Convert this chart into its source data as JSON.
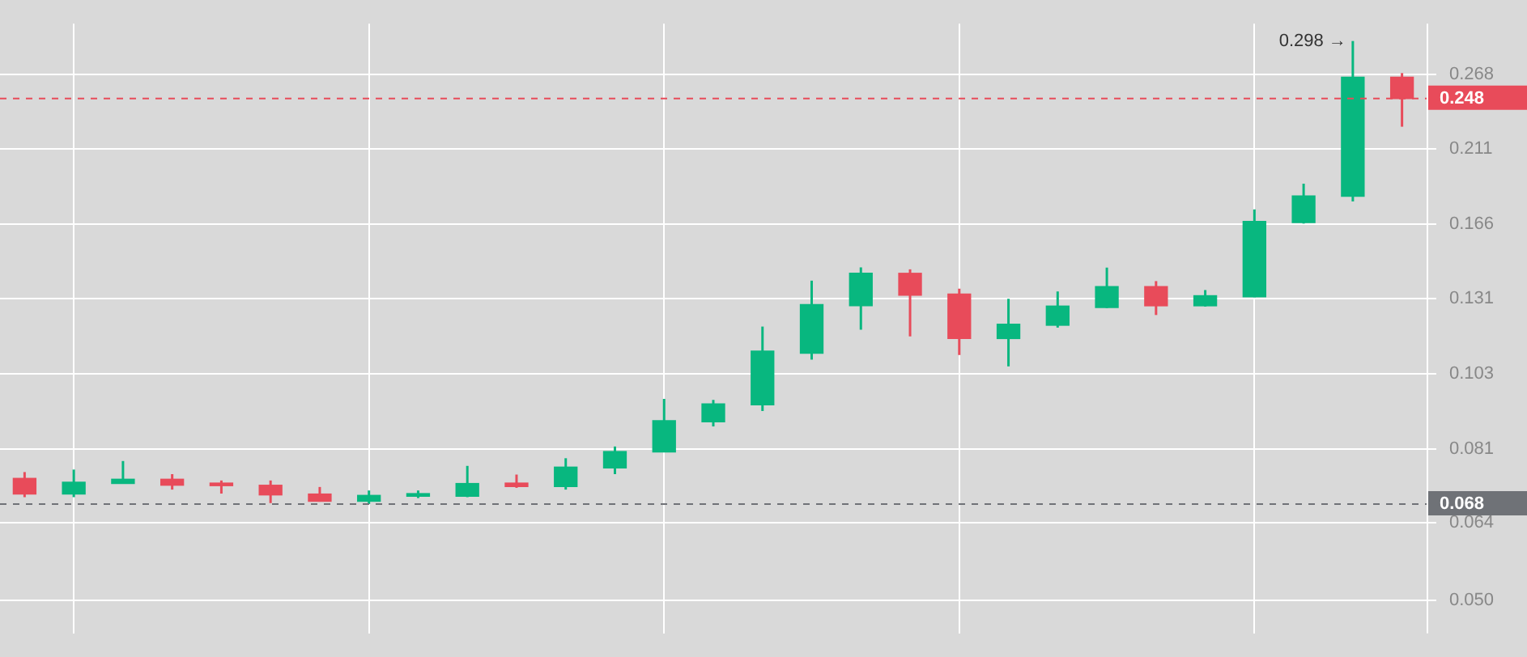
{
  "chart_data": {
    "type": "candlestick",
    "categories": [
      null,
      null,
      null,
      null,
      null,
      null,
      null,
      null,
      null,
      null,
      null,
      null,
      null,
      null,
      null,
      null,
      null,
      null,
      null,
      null,
      null,
      null,
      null,
      null,
      null,
      null,
      null,
      null,
      null
    ],
    "ohlc": [
      [
        0.0738,
        0.0753,
        0.0695,
        0.0702
      ],
      [
        0.0702,
        0.0759,
        0.0695,
        0.0729
      ],
      [
        0.0726,
        0.078,
        0.0726,
        0.0736
      ],
      [
        0.0736,
        0.0748,
        0.0712,
        0.0722
      ],
      [
        0.0727,
        0.0733,
        0.0703,
        0.0721
      ],
      [
        0.0722,
        0.0733,
        0.0682,
        0.07
      ],
      [
        0.0702,
        0.0718,
        0.0685,
        0.0686
      ],
      [
        0.0686,
        0.071,
        0.068,
        0.0699
      ],
      [
        0.0697,
        0.071,
        0.0693,
        0.0703
      ],
      [
        0.0697,
        0.0768,
        0.0695,
        0.0726
      ],
      [
        0.0727,
        0.0747,
        0.0716,
        0.0719
      ],
      [
        0.0719,
        0.0787,
        0.0712,
        0.0765
      ],
      [
        0.0763,
        0.0817,
        0.0748,
        0.0804
      ],
      [
        0.0803,
        0.0951,
        0.0803,
        0.0887
      ],
      [
        0.0884,
        0.0948,
        0.0871,
        0.0936
      ],
      [
        0.0933,
        0.1198,
        0.0915,
        0.1108
      ],
      [
        0.11,
        0.1387,
        0.1078,
        0.1285
      ],
      [
        0.128,
        0.1447,
        0.1186,
        0.142
      ],
      [
        0.142,
        0.1438,
        0.1161,
        0.1324
      ],
      [
        0.1329,
        0.1352,
        0.1094,
        0.1153
      ],
      [
        0.1153,
        0.1309,
        0.1055,
        0.1207
      ],
      [
        0.1203,
        0.134,
        0.1194,
        0.1279
      ],
      [
        0.1273,
        0.1446,
        0.1271,
        0.1361
      ],
      [
        0.1361,
        0.1385,
        0.1243,
        0.128
      ],
      [
        0.128,
        0.1346,
        0.1277,
        0.1322
      ],
      [
        0.1317,
        0.1741,
        0.1315,
        0.1676
      ],
      [
        0.1669,
        0.189,
        0.1664,
        0.1818
      ],
      [
        0.1815,
        0.298,
        0.1786,
        0.2655
      ],
      [
        0.2655,
        0.269,
        0.2267,
        0.248
      ]
    ],
    "colors": [
      "#e84b5a",
      "#08b77f",
      "#08b77f",
      "#e84b5a",
      "#e84b5a",
      "#e84b5a",
      "#e84b5a",
      "#08b77f",
      "#08b77f",
      "#08b77f",
      "#e84b5a",
      "#08b77f",
      "#08b77f",
      "#08b77f",
      "#08b77f",
      "#08b77f",
      "#08b77f",
      "#08b77f",
      "#e84b5a",
      "#e84b5a",
      "#08b77f",
      "#08b77f",
      "#08b77f",
      "#e84b5a",
      "#08b77f",
      "#08b77f",
      "#08b77f",
      "#08b77f",
      "#e84b5a"
    ],
    "ylim": [
      0.045,
      0.315
    ],
    "yticks": [
      {
        "value": 0.05,
        "label": "0.050"
      },
      0.064,
      0.081,
      0.103,
      0.131,
      0.166,
      0.211,
      0.268
    ],
    "log": "y",
    "grid": true,
    "tick_labels": "y",
    "legend": false,
    "ref_lines": [
      {
        "axis": "y",
        "value": 0.248,
        "label": "0.248",
        "color": "#e84b5a",
        "line_style": "dashed"
      },
      {
        "axis": "y",
        "value": 0.068,
        "label": "0.068",
        "color": "#6f7277",
        "line_style": "dashed"
      }
    ],
    "annotations": [
      "0.298 →"
    ]
  }
}
